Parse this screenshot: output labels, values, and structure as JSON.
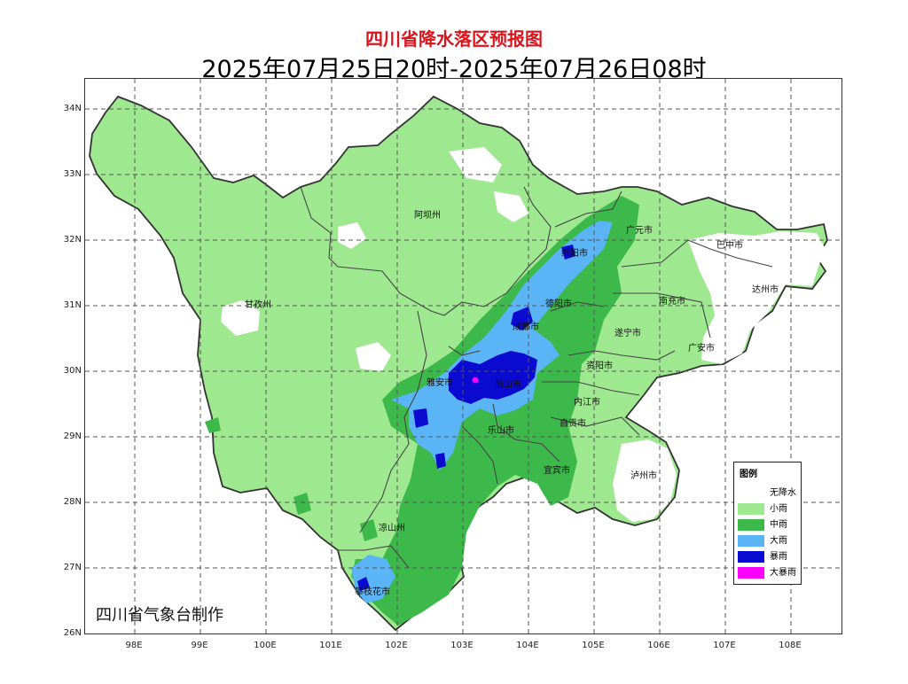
{
  "title": "四川省降水落区预报图",
  "time_range": "2025年07月25日20时-2025年07月26日08时",
  "credit": "四川省气象台制作",
  "axes": {
    "lat_labels": [
      "34N",
      "33N",
      "32N",
      "31N",
      "30N",
      "29N",
      "28N",
      "27N",
      "26N"
    ],
    "lon_labels": [
      "98E",
      "99E",
      "100E",
      "101E",
      "102E",
      "103E",
      "104E",
      "105E",
      "106E",
      "107E",
      "108E"
    ]
  },
  "cities": [
    {
      "name": "阿坝州"
    },
    {
      "name": "甘孜州"
    },
    {
      "name": "广元市"
    },
    {
      "name": "巴中市"
    },
    {
      "name": "绵阳市"
    },
    {
      "name": "达州市"
    },
    {
      "name": "德阳市"
    },
    {
      "name": "南充市"
    },
    {
      "name": "成都市"
    },
    {
      "name": "遂宁市"
    },
    {
      "name": "广安市"
    },
    {
      "name": "雅安市"
    },
    {
      "name": "眉山市"
    },
    {
      "name": "资阳市"
    },
    {
      "name": "内江市"
    },
    {
      "name": "乐山市"
    },
    {
      "name": "自贡市"
    },
    {
      "name": "宜宾市"
    },
    {
      "name": "泸州市"
    },
    {
      "name": "凉山州"
    },
    {
      "name": "攀枝花市"
    }
  ],
  "legend": {
    "title": "图例",
    "items": [
      {
        "label": "无降水",
        "color": "#ffffff"
      },
      {
        "label": "小雨",
        "color": "#9ee88f"
      },
      {
        "label": "中雨",
        "color": "#3cb94a"
      },
      {
        "label": "大雨",
        "color": "#5ab4f5"
      },
      {
        "label": "暴雨",
        "color": "#0a0ad0"
      },
      {
        "label": "大暴雨",
        "color": "#ff00ff"
      }
    ]
  }
}
